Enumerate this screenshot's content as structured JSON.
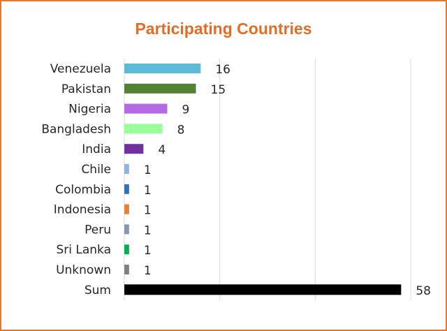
{
  "chart_data": {
    "type": "bar",
    "orientation": "horizontal",
    "title": "Participating Countries",
    "categories": [
      "Venezuela",
      "Pakistan",
      "Nigeria",
      "Bangladesh",
      "India",
      "Chile",
      "Colombia",
      "Indonesia",
      "Peru",
      "Sri Lanka",
      "Unknown",
      "Sum"
    ],
    "values": [
      16,
      15,
      9,
      8,
      4,
      1,
      1,
      1,
      1,
      1,
      1,
      58
    ],
    "colors": [
      "#5bbcd8",
      "#548235",
      "#b36ae2",
      "#99ff99",
      "#7030a0",
      "#8eb4e3",
      "#2e75b6",
      "#ed7d31",
      "#8497b0",
      "#00b050",
      "#7f7f7f",
      "#000000"
    ],
    "xlim": [
      0,
      60
    ],
    "grid": true,
    "legend": "none",
    "xlabel": "",
    "ylabel": ""
  },
  "colors": {
    "frame": "#e07a2f",
    "title": "#e46c24",
    "grid": "#d9d9d9",
    "text": "#262626"
  }
}
